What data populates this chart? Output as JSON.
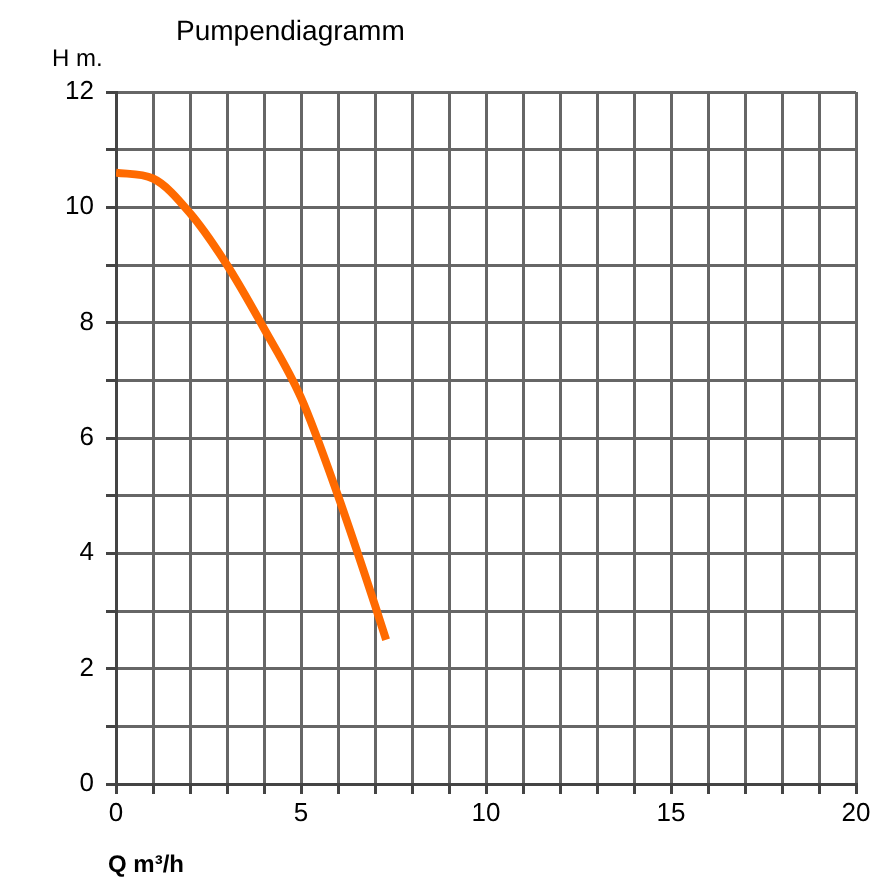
{
  "chart_data": {
    "type": "line",
    "title": "Pumpendiagramm",
    "xlabel": "Q m³/h",
    "ylabel": "H m.",
    "x": [
      0,
      1,
      2,
      3,
      4,
      5,
      6,
      7,
      7.3
    ],
    "series": [
      {
        "color": "#ff6a00",
        "values": [
          10.6,
          10.5,
          9.9,
          9.0,
          7.9,
          6.7,
          5.0,
          3.1,
          2.5
        ]
      }
    ],
    "xlim": [
      0,
      20
    ],
    "ylim": [
      0,
      12
    ],
    "xticks": [
      0,
      {
        "value": 1,
        "label": null
      },
      {
        "value": 2,
        "label": null
      },
      {
        "value": 3,
        "label": null
      },
      {
        "value": 4,
        "label": null
      },
      5,
      {
        "value": 6,
        "label": null
      },
      {
        "value": 7,
        "label": null
      },
      {
        "value": 8,
        "label": null
      },
      {
        "value": 9,
        "label": null
      },
      10,
      {
        "value": 11,
        "label": null
      },
      {
        "value": 12,
        "label": null
      },
      {
        "value": 13,
        "label": null
      },
      {
        "value": 14,
        "label": null
      },
      15,
      {
        "value": 16,
        "label": null
      },
      {
        "value": 17,
        "label": null
      },
      {
        "value": 18,
        "label": null
      },
      {
        "value": 19,
        "label": null
      },
      20
    ],
    "yticks": [
      0,
      {
        "value": 1,
        "label": null
      },
      2,
      {
        "value": 3,
        "label": null
      },
      4,
      {
        "value": 5,
        "label": null
      },
      6,
      {
        "value": 7,
        "label": null
      },
      8,
      {
        "value": 9,
        "label": null
      },
      10,
      {
        "value": 11,
        "label": null
      },
      12
    ],
    "grid": true,
    "legend": false,
    "marker": "none",
    "line_style": "solid"
  }
}
